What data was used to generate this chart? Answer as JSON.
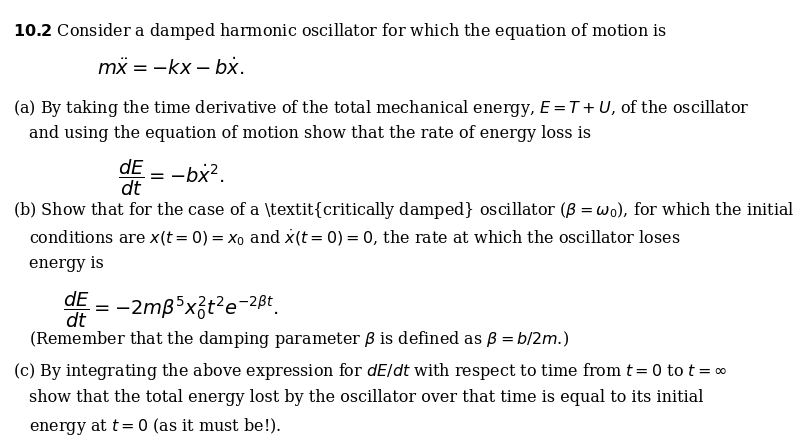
{
  "title_num": "10.2",
  "title_text": "Consider a damped harmonic oscillator for which the equation of motion is",
  "eq1": "$m\\ddot{x} = -kx - b\\dot{x}.$",
  "part_a_line1": "(a) By taking the time derivative of the total mechanical energy, $E = T+U$, of the oscillator",
  "part_a_line2": "and using the equation of motion show that the rate of energy loss is",
  "eq2": "$\\dfrac{dE}{dt} = -b\\dot{x}^2.$",
  "part_b_line1": "(b) Show that for the case of a \\textit{critically damped} oscillator ($\\beta = \\omega_0$), for which the initial",
  "part_b_line2": "conditions are $x(t=0) = x_0$ and $\\dot{x}(t=0) = 0$, the rate at which the oscillator loses",
  "part_b_line3": "energy is",
  "eq3": "$\\dfrac{dE}{dt} = -2m\\beta^5 x_0^2 t^2 e^{-2\\beta t}.$",
  "part_b_line4": "(Remember that the damping parameter $\\beta$ is defined as $\\beta = b/2m$.)",
  "part_c_line1": "(c) By integrating the above expression for $dE/dt$ with respect to time from $t = 0$ to $t = \\infty$",
  "part_c_line2": "show that the total energy lost by the oscillator over that time is equal to its initial",
  "part_c_line3": "energy at $t = 0$ (as it must be!).",
  "bg_color": "#ffffff",
  "text_color": "#000000",
  "fontsize_main": 11.5,
  "fontsize_eq": 13
}
